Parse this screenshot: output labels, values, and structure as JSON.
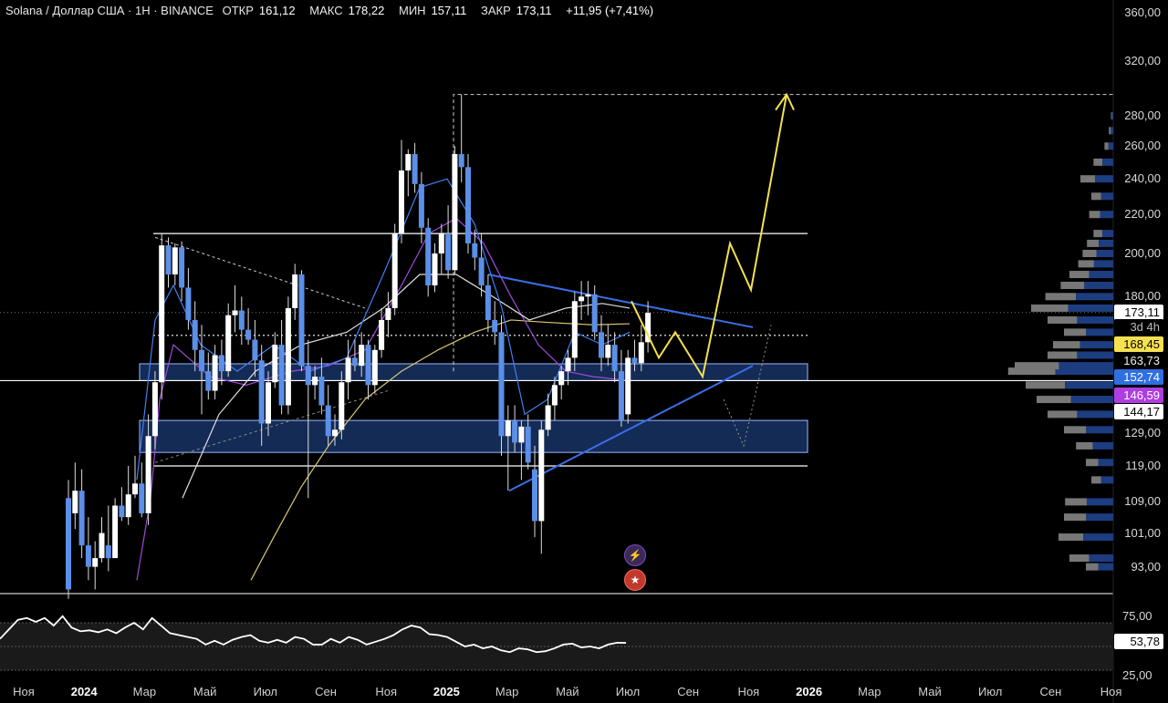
{
  "header": {
    "symbol": "Solana / Доллар США · 1Н · BINANCE",
    "open_label": "ОТКР",
    "open": "161,12",
    "high_label": "МАКС",
    "high": "178,22",
    "low_label": "МИН",
    "low": "157,11",
    "close_label": "ЗАКР",
    "close": "173,11",
    "change": "+11,95 (+7,41%)"
  },
  "colors": {
    "background": "#000000",
    "up_candle": "#ffffff",
    "down_candle": "#5b8fe8",
    "trendline": "#3a6ee8",
    "projection": "#f5e050",
    "zone_fill": "#1b3a73",
    "rsi": "#ffffff"
  },
  "price_axis": {
    "labels": [
      "360,00",
      "320,00",
      "280,00",
      "260,00",
      "240,00",
      "220,00",
      "200,00",
      "180,00",
      "129,00",
      "119,00",
      "109,00",
      "101,00",
      "93,00"
    ]
  },
  "price_tags": {
    "last": "173,11",
    "countdown": "3d 4h",
    "ma_yellow": "168,45",
    "level_white": "163,73",
    "zone_top": "152,74",
    "ma_purple": "146,59",
    "level_low": "144,17"
  },
  "rsi": {
    "upper": "75,00",
    "current": "53,78",
    "lower": "25,00"
  },
  "time_axis": [
    {
      "label": "Ноя",
      "year": false
    },
    {
      "label": "2024",
      "year": true
    },
    {
      "label": "Мар",
      "year": false
    },
    {
      "label": "Май",
      "year": false
    },
    {
      "label": "Июл",
      "year": false
    },
    {
      "label": "Сен",
      "year": false
    },
    {
      "label": "Ноя",
      "year": false
    },
    {
      "label": "2025",
      "year": true
    },
    {
      "label": "Мар",
      "year": false
    },
    {
      "label": "Май",
      "year": false
    },
    {
      "label": "Июл",
      "year": false
    },
    {
      "label": "Сен",
      "year": false
    },
    {
      "label": "Ноя",
      "year": false
    },
    {
      "label": "2026",
      "year": true
    },
    {
      "label": "Мар",
      "year": false
    },
    {
      "label": "Май",
      "year": false
    },
    {
      "label": "Июл",
      "year": false
    },
    {
      "label": "Сен",
      "year": false
    },
    {
      "label": "Ноя",
      "year": false
    }
  ],
  "chart_data": {
    "type": "candlestick",
    "symbol": "SOLUSD",
    "interval": "1Н",
    "x_range": [
      "2023-11",
      "2026-11"
    ],
    "ylim": [
      88,
      370
    ],
    "y_scale": "log",
    "horizontal_levels": [
      210,
      163.73,
      146.59,
      119
    ],
    "zones": [
      [
        146.59,
        152.74
      ],
      [
        123,
        133
      ]
    ],
    "projection_target": 295,
    "rsi_levels": [
      75,
      50,
      25
    ],
    "rsi_current": 53.78,
    "candles": [
      {
        "o": 110,
        "h": 115,
        "l": 86,
        "c": 88
      },
      {
        "o": 106,
        "h": 120,
        "l": 102,
        "c": 112
      },
      {
        "o": 112,
        "h": 118,
        "l": 95,
        "c": 98
      },
      {
        "o": 98,
        "h": 105,
        "l": 90,
        "c": 93
      },
      {
        "o": 93,
        "h": 99,
        "l": 88,
        "c": 95
      },
      {
        "o": 95,
        "h": 105,
        "l": 94,
        "c": 101
      },
      {
        "o": 98,
        "h": 108,
        "l": 92,
        "c": 95
      },
      {
        "o": 95,
        "h": 110,
        "l": 95,
        "c": 108
      },
      {
        "o": 108,
        "h": 113,
        "l": 104,
        "c": 105
      },
      {
        "o": 105,
        "h": 119,
        "l": 103,
        "c": 111
      },
      {
        "o": 111,
        "h": 122,
        "l": 110,
        "c": 114
      },
      {
        "o": 114,
        "h": 120,
        "l": 105,
        "c": 106
      },
      {
        "o": 106,
        "h": 135,
        "l": 103,
        "c": 128
      },
      {
        "o": 128,
        "h": 150,
        "l": 124,
        "c": 146
      },
      {
        "o": 146,
        "h": 210,
        "l": 140,
        "c": 204
      },
      {
        "o": 204,
        "h": 208,
        "l": 184,
        "c": 190
      },
      {
        "o": 190,
        "h": 205,
        "l": 185,
        "c": 203
      },
      {
        "o": 203,
        "h": 206,
        "l": 178,
        "c": 184
      },
      {
        "o": 184,
        "h": 193,
        "l": 166,
        "c": 170
      },
      {
        "o": 170,
        "h": 178,
        "l": 150,
        "c": 158
      },
      {
        "o": 158,
        "h": 168,
        "l": 135,
        "c": 150
      },
      {
        "o": 150,
        "h": 157,
        "l": 140,
        "c": 143
      },
      {
        "o": 143,
        "h": 160,
        "l": 140,
        "c": 156
      },
      {
        "o": 156,
        "h": 162,
        "l": 145,
        "c": 150
      },
      {
        "o": 150,
        "h": 177,
        "l": 148,
        "c": 172
      },
      {
        "o": 172,
        "h": 185,
        "l": 165,
        "c": 174
      },
      {
        "o": 174,
        "h": 180,
        "l": 160,
        "c": 166
      },
      {
        "o": 166,
        "h": 175,
        "l": 160,
        "c": 162
      },
      {
        "o": 162,
        "h": 170,
        "l": 148,
        "c": 154
      },
      {
        "o": 154,
        "h": 160,
        "l": 125,
        "c": 132
      },
      {
        "o": 132,
        "h": 150,
        "l": 128,
        "c": 146
      },
      {
        "o": 146,
        "h": 165,
        "l": 144,
        "c": 160
      },
      {
        "o": 160,
        "h": 170,
        "l": 135,
        "c": 138
      },
      {
        "o": 138,
        "h": 180,
        "l": 135,
        "c": 175
      },
      {
        "o": 175,
        "h": 195,
        "l": 170,
        "c": 190
      },
      {
        "o": 190,
        "h": 192,
        "l": 150,
        "c": 152
      },
      {
        "o": 152,
        "h": 162,
        "l": 110,
        "c": 145
      },
      {
        "o": 145,
        "h": 152,
        "l": 140,
        "c": 148
      },
      {
        "o": 148,
        "h": 155,
        "l": 135,
        "c": 138
      },
      {
        "o": 138,
        "h": 145,
        "l": 125,
        "c": 128
      },
      {
        "o": 128,
        "h": 135,
        "l": 125,
        "c": 130
      },
      {
        "o": 130,
        "h": 150,
        "l": 127,
        "c": 146
      },
      {
        "o": 146,
        "h": 162,
        "l": 140,
        "c": 155
      },
      {
        "o": 155,
        "h": 162,
        "l": 150,
        "c": 152
      },
      {
        "o": 152,
        "h": 165,
        "l": 148,
        "c": 160
      },
      {
        "o": 160,
        "h": 162,
        "l": 140,
        "c": 145
      },
      {
        "o": 145,
        "h": 160,
        "l": 142,
        "c": 158
      },
      {
        "o": 158,
        "h": 175,
        "l": 155,
        "c": 170
      },
      {
        "o": 170,
        "h": 182,
        "l": 163,
        "c": 175
      },
      {
        "o": 175,
        "h": 215,
        "l": 172,
        "c": 210
      },
      {
        "o": 210,
        "h": 264,
        "l": 205,
        "c": 245
      },
      {
        "o": 245,
        "h": 258,
        "l": 230,
        "c": 255
      },
      {
        "o": 255,
        "h": 262,
        "l": 232,
        "c": 237
      },
      {
        "o": 237,
        "h": 244,
        "l": 205,
        "c": 213
      },
      {
        "o": 213,
        "h": 218,
        "l": 180,
        "c": 185
      },
      {
        "o": 185,
        "h": 205,
        "l": 182,
        "c": 200
      },
      {
        "o": 200,
        "h": 215,
        "l": 190,
        "c": 210
      },
      {
        "o": 210,
        "h": 225,
        "l": 188,
        "c": 192
      },
      {
        "o": 192,
        "h": 260,
        "l": 190,
        "c": 255
      },
      {
        "o": 255,
        "h": 295,
        "l": 238,
        "c": 247
      },
      {
        "o": 247,
        "h": 255,
        "l": 200,
        "c": 205
      },
      {
        "o": 205,
        "h": 212,
        "l": 192,
        "c": 198
      },
      {
        "o": 198,
        "h": 210,
        "l": 180,
        "c": 185
      },
      {
        "o": 185,
        "h": 190,
        "l": 165,
        "c": 170
      },
      {
        "o": 170,
        "h": 178,
        "l": 160,
        "c": 165
      },
      {
        "o": 165,
        "h": 172,
        "l": 122,
        "c": 128
      },
      {
        "o": 128,
        "h": 138,
        "l": 112,
        "c": 133
      },
      {
        "o": 133,
        "h": 138,
        "l": 123,
        "c": 126
      },
      {
        "o": 126,
        "h": 133,
        "l": 115,
        "c": 131
      },
      {
        "o": 131,
        "h": 135,
        "l": 118,
        "c": 120
      },
      {
        "o": 118,
        "h": 125,
        "l": 100,
        "c": 104
      },
      {
        "o": 104,
        "h": 133,
        "l": 96,
        "c": 130
      },
      {
        "o": 130,
        "h": 142,
        "l": 128,
        "c": 138
      },
      {
        "o": 138,
        "h": 148,
        "l": 133,
        "c": 145
      },
      {
        "o": 145,
        "h": 152,
        "l": 140,
        "c": 150
      },
      {
        "o": 150,
        "h": 158,
        "l": 145,
        "c": 155
      },
      {
        "o": 155,
        "h": 182,
        "l": 150,
        "c": 178
      },
      {
        "o": 178,
        "h": 187,
        "l": 170,
        "c": 180
      },
      {
        "o": 180,
        "h": 187,
        "l": 172,
        "c": 181
      },
      {
        "o": 181,
        "h": 185,
        "l": 162,
        "c": 165
      },
      {
        "o": 165,
        "h": 172,
        "l": 150,
        "c": 155
      },
      {
        "o": 155,
        "h": 168,
        "l": 152,
        "c": 160
      },
      {
        "o": 160,
        "h": 165,
        "l": 146,
        "c": 150
      },
      {
        "o": 150,
        "h": 158,
        "l": 131,
        "c": 133
      },
      {
        "o": 135,
        "h": 158,
        "l": 132,
        "c": 155
      },
      {
        "o": 155,
        "h": 162,
        "l": 150,
        "c": 153
      },
      {
        "o": 153,
        "h": 168,
        "l": 150,
        "c": 161
      },
      {
        "o": 161,
        "h": 178,
        "l": 157,
        "c": 173
      }
    ]
  }
}
